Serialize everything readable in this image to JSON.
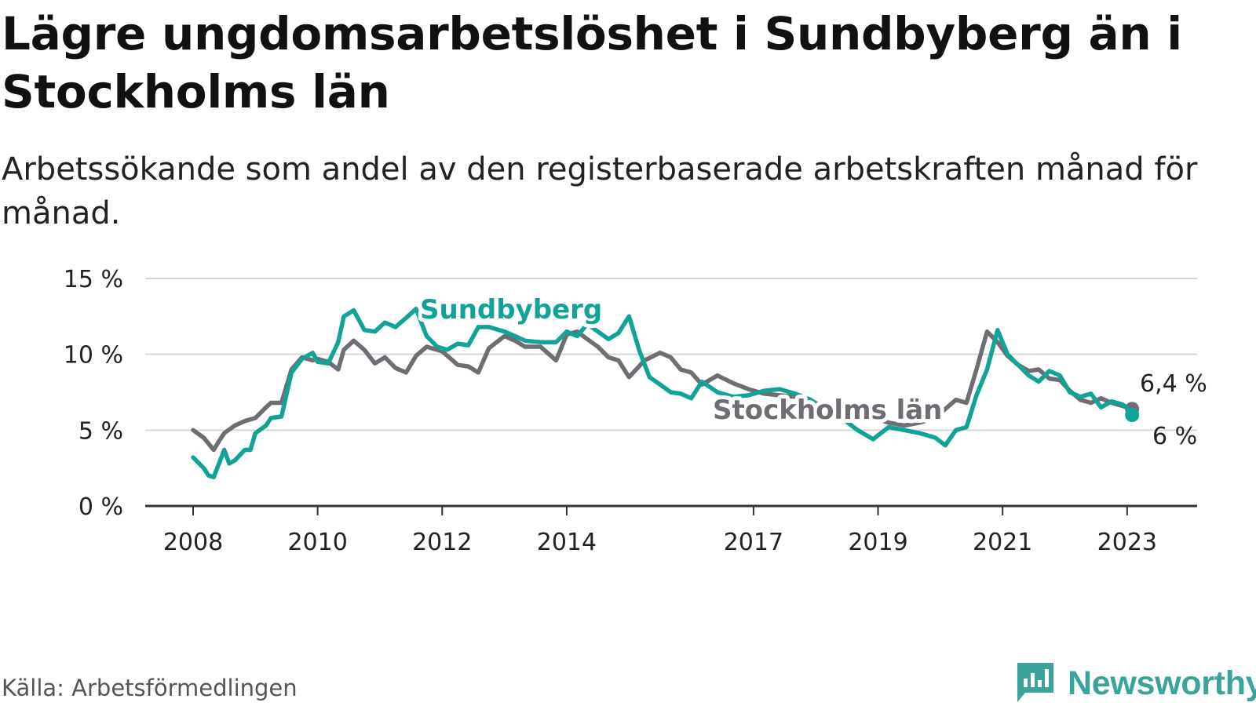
{
  "title": "Lägre ungdomsarbetslöshet i Sundbyberg än i Stockholms län",
  "subtitle": "Arbetssökande som andel av den registerbaserade arbetskraften månad för månad.",
  "source": "Källa: Arbetsförmedlingen",
  "brand": "Newsworthy",
  "colors": {
    "sundbyberg": "#12a398",
    "stockholm": "#6f6c73",
    "grid": "#d6d6d6",
    "axis": "#333333",
    "brand": "#3aa39a"
  },
  "chart_data": {
    "type": "line",
    "x_range": [
      2008.0,
      2023.33
    ],
    "ylim": [
      0,
      15
    ],
    "yticks": [
      {
        "value": 0,
        "label": "0 %"
      },
      {
        "value": 5,
        "label": "5 %"
      },
      {
        "value": 10,
        "label": "10 %"
      },
      {
        "value": 15,
        "label": "15 %"
      }
    ],
    "xticks": [
      {
        "value": 2008,
        "label": "2008"
      },
      {
        "value": 2010,
        "label": "2010"
      },
      {
        "value": 2012,
        "label": "2012"
      },
      {
        "value": 2014,
        "label": "2014"
      },
      {
        "value": 2017,
        "label": "2017"
      },
      {
        "value": 2019,
        "label": "2019"
      },
      {
        "value": 2021,
        "label": "2021"
      },
      {
        "value": 2023,
        "label": "2023"
      }
    ],
    "series": [
      {
        "name": "Stockholms län",
        "label": "Stockholms län",
        "end_label": "6,4 %",
        "x": [
          2008.0,
          2008.17,
          2008.33,
          2008.42,
          2008.5,
          2008.67,
          2008.83,
          2009.0,
          2009.17,
          2009.25,
          2009.42,
          2009.58,
          2009.75,
          2009.92,
          2010.0,
          2010.17,
          2010.33,
          2010.42,
          2010.58,
          2010.75,
          2010.92,
          2011.08,
          2011.25,
          2011.42,
          2011.58,
          2011.75,
          2012.0,
          2012.25,
          2012.42,
          2012.58,
          2012.75,
          2013.0,
          2013.17,
          2013.33,
          2013.58,
          2013.83,
          2014.0,
          2014.17,
          2014.33,
          2014.5,
          2014.67,
          2014.83,
          2015.0,
          2015.25,
          2015.5,
          2015.67,
          2015.83,
          2016.0,
          2016.17,
          2016.42,
          2016.67,
          2016.92,
          2017.17,
          2017.42,
          2017.67,
          2017.92,
          2018.17,
          2018.42,
          2018.67,
          2018.92,
          2019.17,
          2019.42,
          2019.67,
          2019.92,
          2020.08,
          2020.25,
          2020.42,
          2020.58,
          2020.75,
          2020.92,
          2021.08,
          2021.25,
          2021.42,
          2021.58,
          2021.75,
          2021.92,
          2022.08,
          2022.25,
          2022.42,
          2022.58,
          2022.75,
          2022.92,
          2023.08
        ],
        "values": [
          5.0,
          4.5,
          3.7,
          4.3,
          4.8,
          5.3,
          5.6,
          5.8,
          6.5,
          6.8,
          6.8,
          9.0,
          9.8,
          9.6,
          9.7,
          9.5,
          9.0,
          10.3,
          10.9,
          10.3,
          9.4,
          9.8,
          9.1,
          8.8,
          9.9,
          10.5,
          10.2,
          9.3,
          9.2,
          8.8,
          10.4,
          11.2,
          10.9,
          10.5,
          10.5,
          9.6,
          11.3,
          11.5,
          11.0,
          10.5,
          9.8,
          9.6,
          8.5,
          9.6,
          10.1,
          9.8,
          9.0,
          8.8,
          8.0,
          8.6,
          8.1,
          7.7,
          7.4,
          7.3,
          7.2,
          6.9,
          6.5,
          6.1,
          5.9,
          5.8,
          5.5,
          5.3,
          5.5,
          5.8,
          6.4,
          7.0,
          6.8,
          9.0,
          11.5,
          10.8,
          9.9,
          9.3,
          8.9,
          9.0,
          8.4,
          8.3,
          7.6,
          7.0,
          6.8,
          7.1,
          6.8,
          6.6,
          6.4
        ]
      },
      {
        "name": "Sundbyberg",
        "label": "Sundbyberg",
        "end_label": "6 %",
        "x": [
          2008.0,
          2008.17,
          2008.25,
          2008.33,
          2008.5,
          2008.58,
          2008.67,
          2008.83,
          2008.92,
          2009.0,
          2009.17,
          2009.25,
          2009.42,
          2009.58,
          2009.75,
          2009.92,
          2010.0,
          2010.17,
          2010.33,
          2010.42,
          2010.58,
          2010.75,
          2010.92,
          2011.08,
          2011.25,
          2011.42,
          2011.58,
          2011.75,
          2011.92,
          2012.08,
          2012.25,
          2012.42,
          2012.58,
          2012.75,
          2013.0,
          2013.17,
          2013.33,
          2013.58,
          2013.83,
          2014.0,
          2014.17,
          2014.33,
          2014.5,
          2014.67,
          2014.83,
          2015.0,
          2015.17,
          2015.33,
          2015.5,
          2015.67,
          2015.83,
          2016.0,
          2016.17,
          2016.42,
          2016.67,
          2016.92,
          2017.17,
          2017.42,
          2017.67,
          2017.92,
          2018.17,
          2018.42,
          2018.67,
          2018.92,
          2019.17,
          2019.42,
          2019.67,
          2019.92,
          2020.08,
          2020.25,
          2020.42,
          2020.58,
          2020.75,
          2020.92,
          2021.08,
          2021.25,
          2021.42,
          2021.58,
          2021.75,
          2021.92,
          2022.08,
          2022.25,
          2022.42,
          2022.58,
          2022.75,
          2022.92,
          2023.0,
          2023.08
        ],
        "values": [
          3.2,
          2.5,
          2.0,
          1.9,
          3.7,
          2.8,
          3.0,
          3.7,
          3.7,
          4.8,
          5.3,
          5.8,
          5.9,
          8.8,
          9.7,
          10.1,
          9.5,
          9.4,
          10.8,
          12.5,
          12.9,
          11.6,
          11.5,
          12.1,
          11.8,
          12.4,
          13.0,
          11.2,
          10.5,
          10.3,
          10.7,
          10.6,
          11.8,
          11.8,
          11.5,
          11.2,
          10.9,
          10.8,
          10.8,
          11.5,
          11.2,
          12.0,
          11.5,
          11.0,
          11.4,
          12.5,
          10.2,
          8.5,
          8.0,
          7.5,
          7.4,
          7.1,
          8.2,
          7.5,
          7.2,
          7.3,
          7.6,
          7.7,
          7.4,
          7.0,
          6.3,
          5.8,
          5.0,
          4.4,
          5.2,
          5.0,
          4.8,
          4.5,
          4.0,
          5.0,
          5.2,
          7.3,
          9.0,
          11.6,
          10.0,
          9.3,
          8.6,
          8.2,
          8.9,
          8.6,
          7.5,
          7.2,
          7.4,
          6.5,
          6.9,
          6.7,
          6.5,
          6.0
        ]
      }
    ]
  }
}
